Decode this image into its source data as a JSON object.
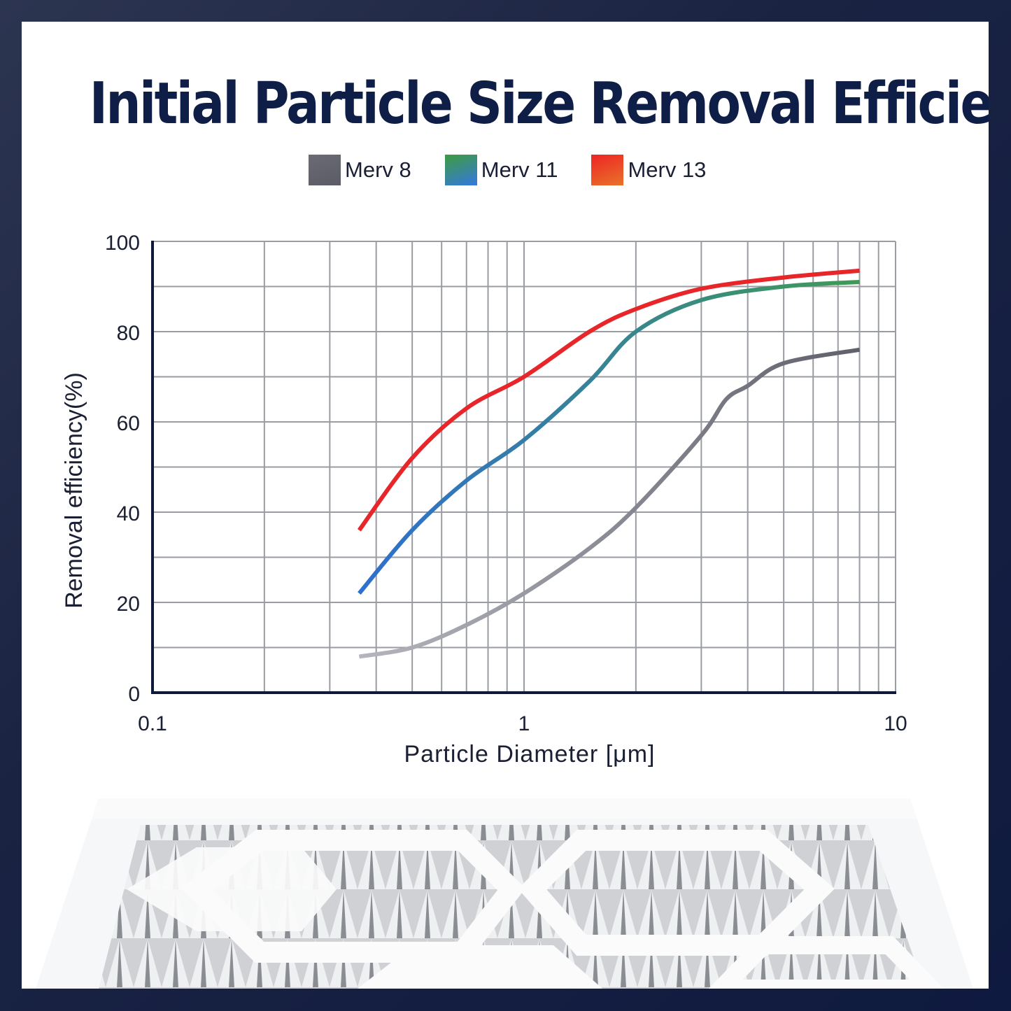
{
  "chart_data": {
    "type": "line",
    "title": "Initial Particle Size Removal Efficiency",
    "xlabel": "Particle Diameter [μm]",
    "ylabel": "Removal efficiency(%)",
    "x_scale": "log",
    "xlim": [
      0.1,
      10
    ],
    "ylim": [
      0,
      100
    ],
    "x_ticks": [
      "0.1",
      "1",
      "10"
    ],
    "y_ticks": [
      "0",
      "20",
      "40",
      "60",
      "80",
      "100"
    ],
    "grid": true,
    "legend_position": "top-center",
    "series": [
      {
        "name": "Merv 8",
        "color": "#9a9ba6",
        "x": [
          0.36,
          0.5,
          0.7,
          1,
          1.5,
          2,
          3,
          3.5,
          4,
          5,
          8
        ],
        "y": [
          8,
          10,
          15,
          22,
          32,
          41,
          57,
          65,
          68,
          73,
          76
        ]
      },
      {
        "name": "Merv 11",
        "color": "#3f8f6a",
        "x": [
          0.36,
          0.5,
          0.7,
          1,
          1.5,
          2,
          3,
          5,
          8
        ],
        "y": [
          22,
          36,
          47,
          56,
          69,
          80,
          87,
          90,
          91
        ]
      },
      {
        "name": "Merv 13",
        "color": "#e8262a",
        "x": [
          0.36,
          0.5,
          0.7,
          1,
          1.5,
          2,
          3,
          5,
          8
        ],
        "y": [
          36,
          52,
          63,
          70,
          80,
          85,
          89.5,
          92,
          93.5
        ]
      }
    ]
  },
  "legend_swatches": [
    {
      "from": "#6a6b75",
      "to": "#5a5b66"
    },
    {
      "from": "#3e9c3e",
      "to": "#3478e0"
    },
    {
      "from": "#ee2424",
      "to": "#e8732a"
    }
  ]
}
